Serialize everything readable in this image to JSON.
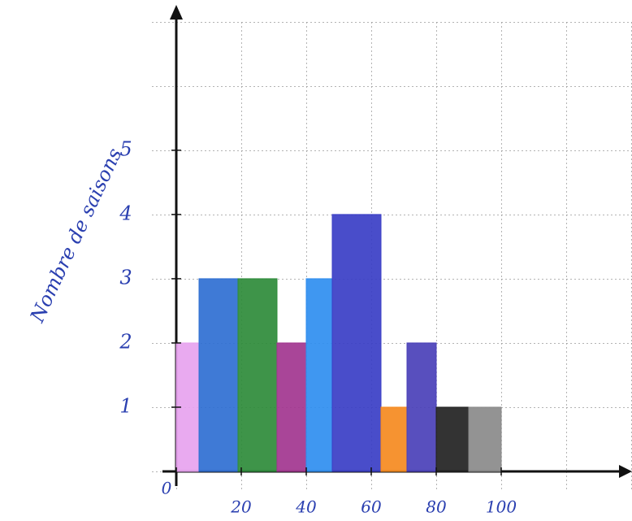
{
  "chart_data": {
    "type": "histogram",
    "y_label": "Nombre de saisons",
    "bins": [
      0,
      7,
      19,
      31,
      40,
      48,
      63,
      71,
      80,
      90,
      100
    ],
    "counts": [
      2,
      3,
      3,
      2,
      3,
      4,
      1,
      2,
      1,
      1
    ],
    "colors": [
      "#e7a3ef",
      "#2f6fd2",
      "#2e8b3a",
      "#a2358f",
      "#2f8ef0",
      "#3a3ec6",
      "#f58a1f",
      "#4a40b8",
      "#222222",
      "#8a8a8a"
    ],
    "xlim": [
      0,
      140
    ],
    "ylim": [
      0,
      7.2
    ],
    "xticks": [
      0,
      20,
      40,
      60,
      80,
      100
    ],
    "yticks": [
      1,
      2,
      3,
      4,
      5
    ]
  }
}
